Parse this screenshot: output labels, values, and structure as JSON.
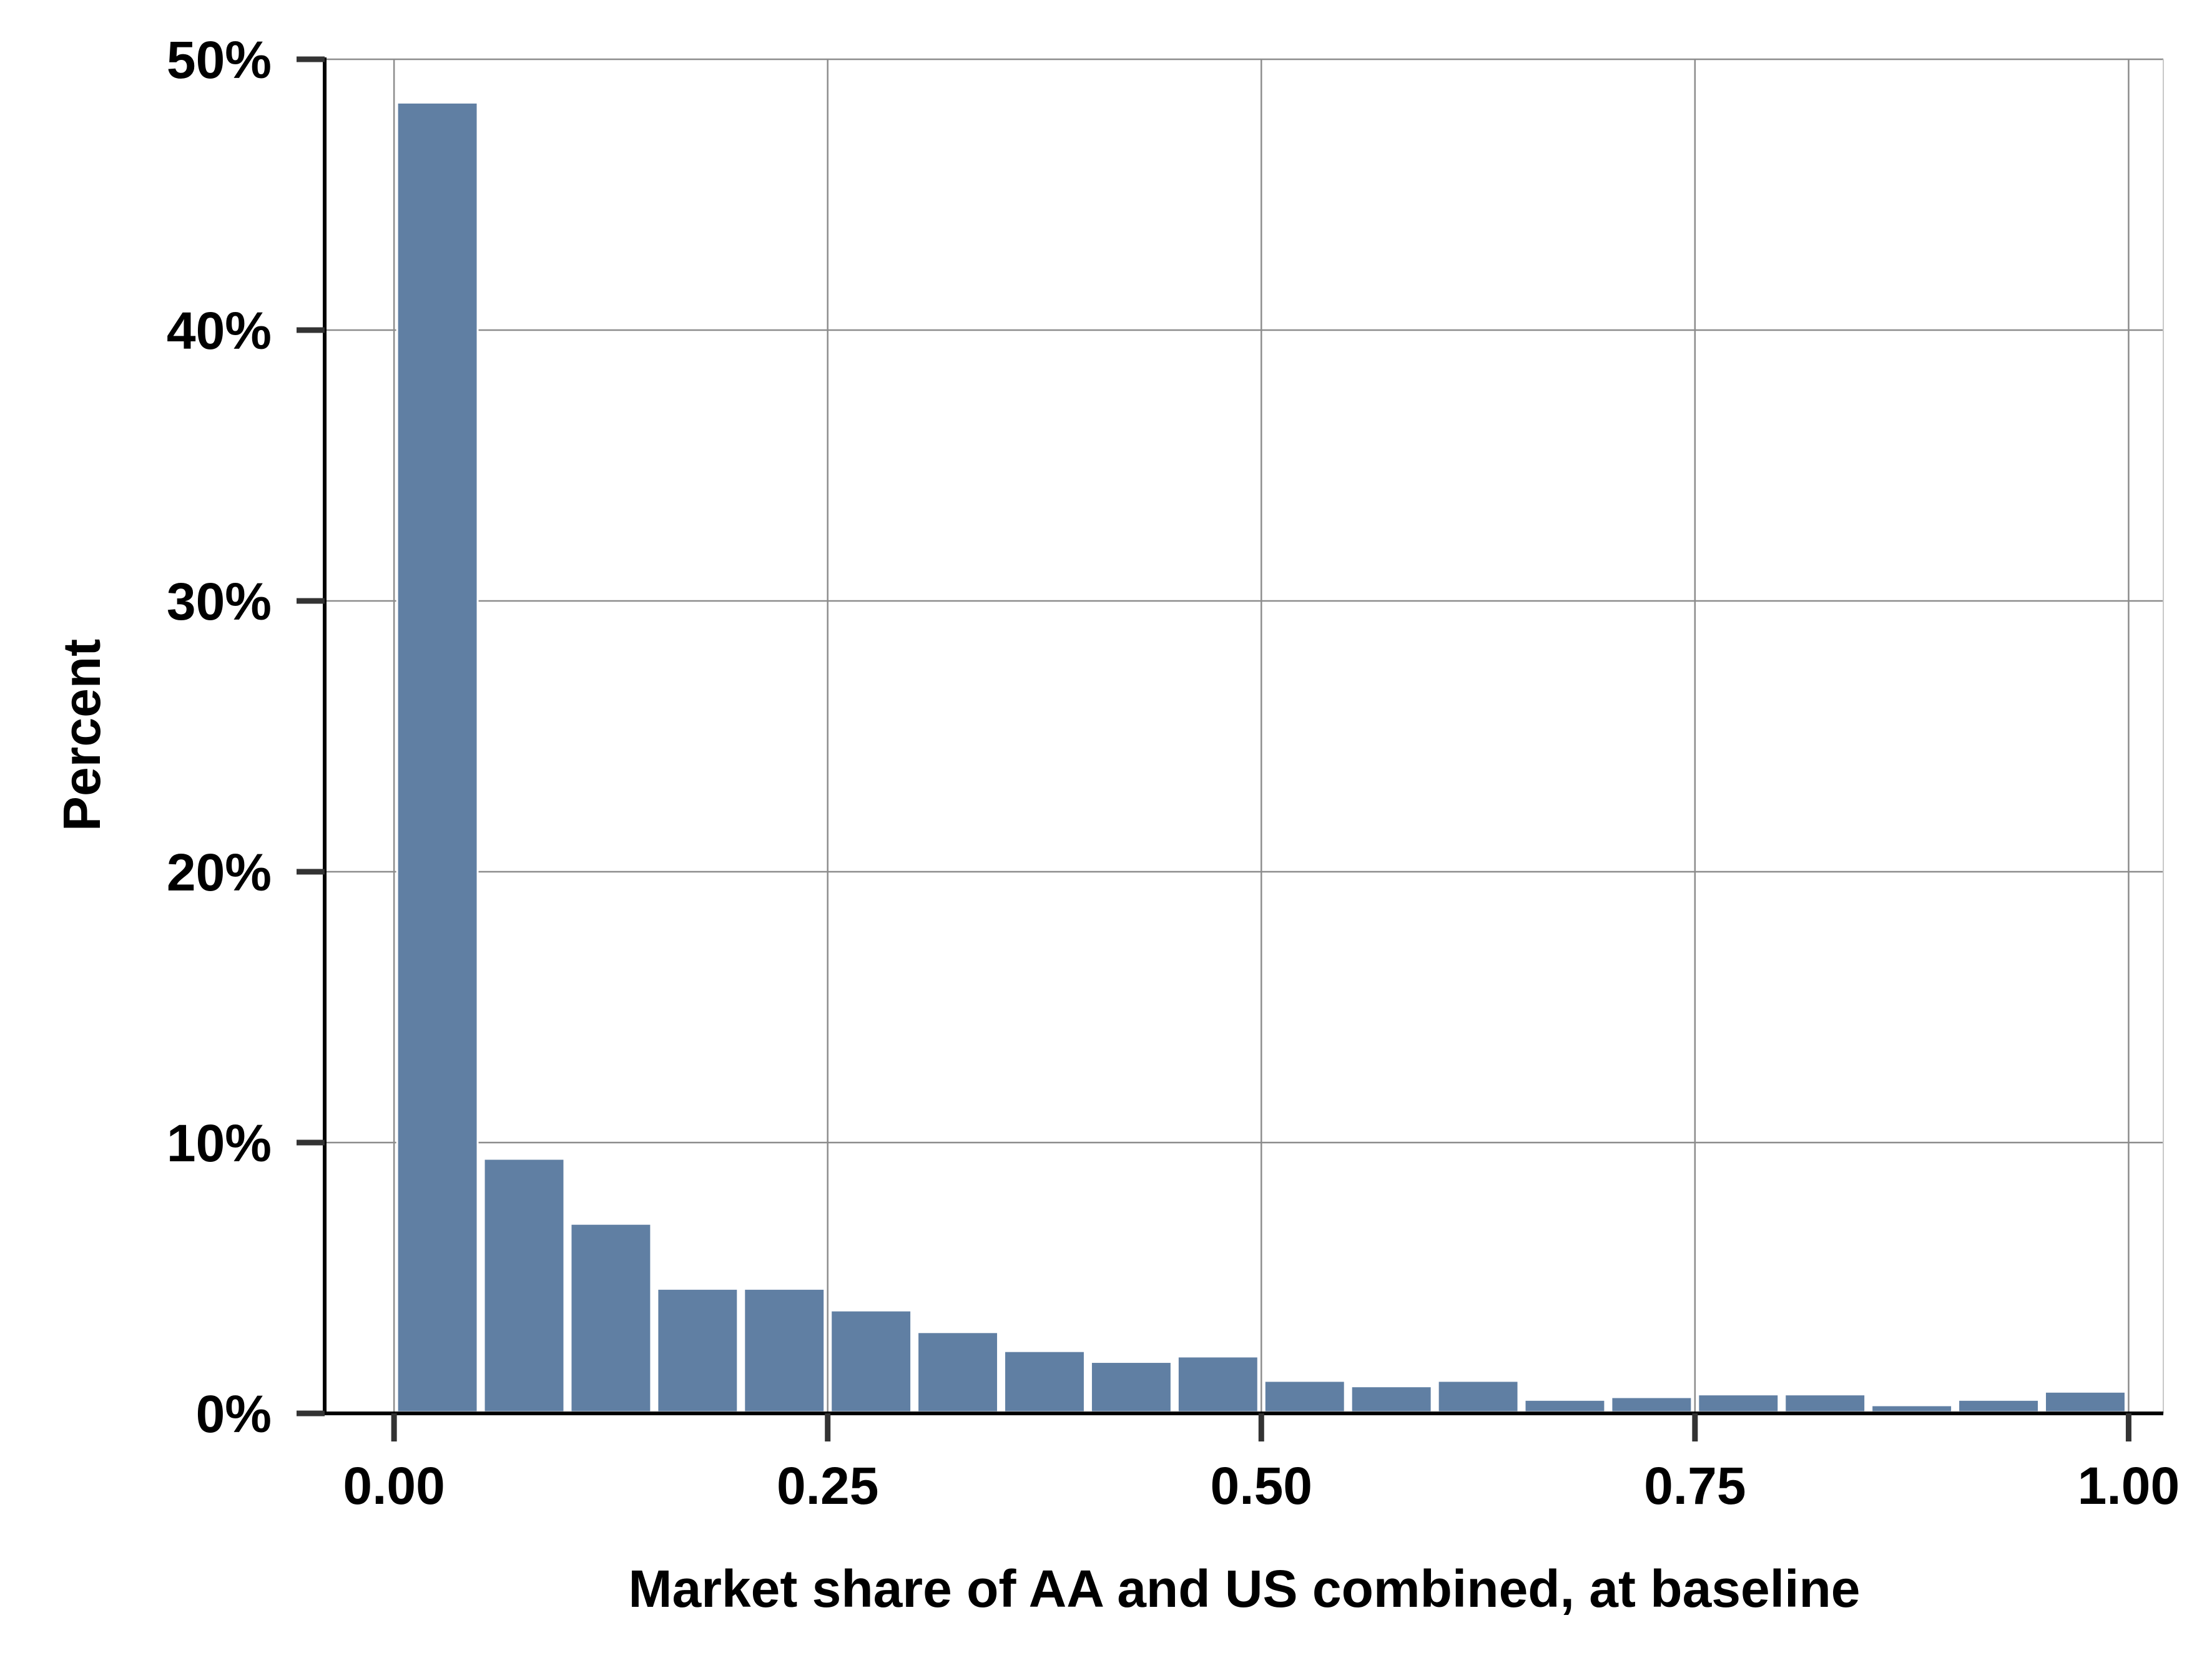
{
  "chart_data": {
    "type": "bar",
    "title": "",
    "xlabel": "Market share of AA and US combined, at baseline",
    "ylabel": "Percent",
    "xlim": [
      -0.04,
      1.02
    ],
    "ylim": [
      0,
      50
    ],
    "x_ticks": [
      0.0,
      0.25,
      0.5,
      0.75,
      1.0
    ],
    "x_tick_labels": [
      "0.00",
      "0.25",
      "0.50",
      "0.75",
      "1.00"
    ],
    "y_ticks": [
      0,
      10,
      20,
      30,
      40,
      50
    ],
    "y_tick_labels": [
      "0%",
      "10%",
      "20%",
      "30%",
      "40%",
      "50%"
    ],
    "grid": true,
    "bar_color": "#607fa3",
    "bin_width": 0.05,
    "bin_centers": [
      0.025,
      0.075,
      0.125,
      0.175,
      0.225,
      0.275,
      0.325,
      0.375,
      0.425,
      0.475,
      0.525,
      0.575,
      0.625,
      0.675,
      0.725,
      0.775,
      0.825,
      0.875,
      0.925,
      0.975
    ],
    "values": [
      48.4,
      9.4,
      7.0,
      4.6,
      4.6,
      3.8,
      3.0,
      2.3,
      1.9,
      2.1,
      1.2,
      1.0,
      1.2,
      0.5,
      0.6,
      0.7,
      0.7,
      0.3,
      0.5,
      0.8
    ]
  }
}
